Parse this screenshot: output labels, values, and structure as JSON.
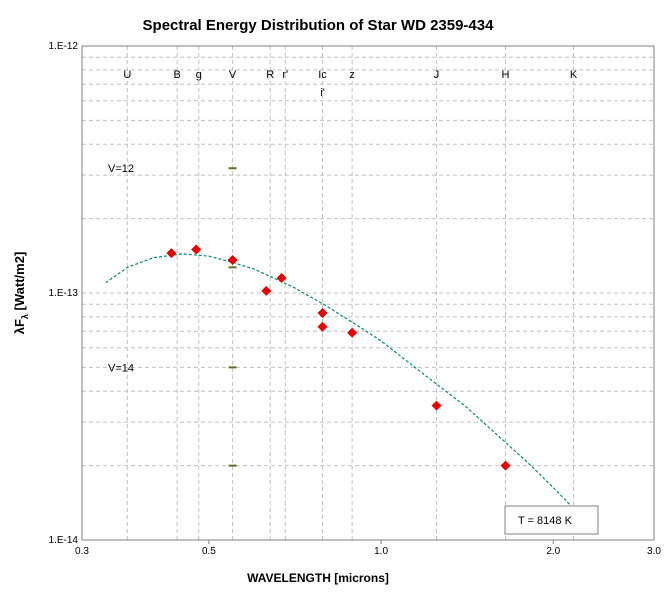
{
  "chart_data": {
    "type": "scatter",
    "title": "Spectral Energy Distribution of Star WD 2359-434",
    "xlabel": "WAVELENGTH [microns]",
    "ylabel_main": "λF",
    "ylabel_sub": "λ",
    "ylabel_unit": " [Watt/m2]",
    "x_scale": "log",
    "y_scale": "log",
    "xlim": [
      0.3,
      3.0
    ],
    "ylim": [
      1e-14,
      1e-12
    ],
    "x_ticks": [
      {
        "value": 0.3,
        "label": "0.3"
      },
      {
        "value": 0.5,
        "label": "0.5"
      },
      {
        "value": 1.0,
        "label": "1.0"
      },
      {
        "value": 2.0,
        "label": "2.0"
      },
      {
        "value": 3.0,
        "label": "3.0"
      }
    ],
    "y_ticks": [
      {
        "value": 1e-14,
        "label": "1.E-14"
      },
      {
        "value": 1e-13,
        "label": "1.E-13"
      },
      {
        "value": 1e-12,
        "label": "1.E-12"
      }
    ],
    "grid": true,
    "bands": [
      {
        "label": "U",
        "wavelength": 0.36,
        "row": 1
      },
      {
        "label": "B",
        "wavelength": 0.44,
        "row": 1
      },
      {
        "label": "g",
        "wavelength": 0.48,
        "row": 1
      },
      {
        "label": "V",
        "wavelength": 0.55,
        "row": 1
      },
      {
        "label": "R",
        "wavelength": 0.64,
        "row": 1
      },
      {
        "label": "r'",
        "wavelength": 0.68,
        "row": 1
      },
      {
        "label": "Ic",
        "wavelength": 0.79,
        "row": 1
      },
      {
        "label": "i'",
        "wavelength": 0.79,
        "row": 2
      },
      {
        "label": "z",
        "wavelength": 0.89,
        "row": 1
      },
      {
        "label": "J",
        "wavelength": 1.25,
        "row": 1
      },
      {
        "label": "H",
        "wavelength": 1.65,
        "row": 1
      },
      {
        "label": "K",
        "wavelength": 2.17,
        "row": 1
      }
    ],
    "band_gridlines": [
      0.36,
      0.44,
      0.48,
      0.55,
      0.64,
      0.68,
      0.79,
      0.89,
      1.25,
      1.65,
      2.17
    ],
    "series": [
      {
        "type": "scatter",
        "color": "#e60000",
        "marker": "diamond",
        "x": [
          0.43,
          0.475,
          0.55,
          0.63,
          0.67,
          0.79,
          0.79,
          0.89,
          1.25,
          1.65
        ],
        "y": [
          1.45e-13,
          1.5e-13,
          1.36e-13,
          1.02e-13,
          1.15e-13,
          8.3e-14,
          7.3e-14,
          6.9e-14,
          3.5e-14,
          2e-14
        ]
      },
      {
        "type": "line",
        "style": "dashed",
        "color": "#00897b",
        "x": [
          0.33,
          0.36,
          0.4,
          0.45,
          0.5,
          0.55,
          0.6,
          0.7,
          0.8,
          0.9,
          1.0,
          1.2,
          1.4,
          1.6,
          1.8,
          2.0,
          2.2
        ],
        "y": [
          1.1e-13,
          1.27e-13,
          1.39e-13,
          1.44e-13,
          1.41e-13,
          1.33e-13,
          1.25e-13,
          1.06e-13,
          8.9e-14,
          7.5e-14,
          6.4e-14,
          4.6e-14,
          3.5e-14,
          2.65e-14,
          2.07e-14,
          1.63e-14,
          1.3e-14
        ]
      }
    ],
    "magnitude_marks": {
      "wavelength": 0.55,
      "color": "#6b6b2a",
      "values": [
        3.2e-13,
        1.27e-13,
        5e-14,
        2e-14
      ],
      "labels": [
        {
          "text": "V=12",
          "y": 3.2e-13
        },
        {
          "text": "V=14",
          "y": 5e-14
        }
      ]
    },
    "annotation": {
      "text": "T = 8148  K",
      "position": "bottom-right"
    }
  }
}
